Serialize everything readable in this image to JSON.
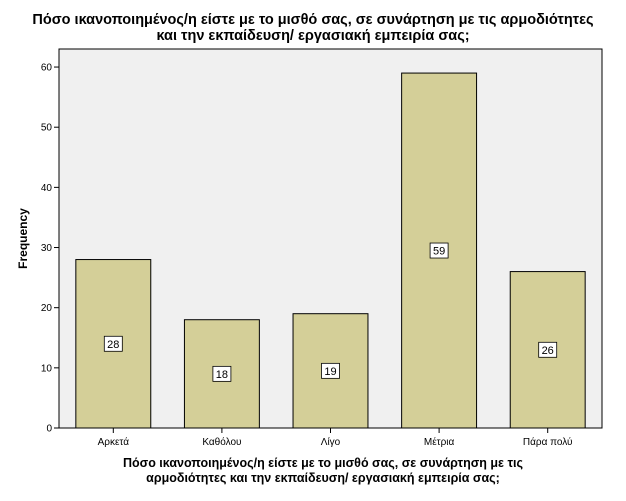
{
  "chart_data": {
    "type": "bar",
    "title_lines": [
      "Πόσο ικανοποιημένος/η είστε με το μισθό σας, σε συνάρτηση με τις αρμοδιότητες",
      "και την εκπαίδευση/ εργασιακή εμπειρία σας;"
    ],
    "xlabel_lines": [
      "Πόσο ικανοποιημένος/η είστε με το μισθό σας, σε συνάρτηση με τις",
      "αρμοδιότητες και την εκπαίδευση/ εργασιακή εμπειρία σας;"
    ],
    "ylabel": "Frequency",
    "categories": [
      "Αρκετά",
      "Καθόλου",
      "Λίγο",
      "Μέτρια",
      "Πάρα πολύ"
    ],
    "values": [
      28,
      18,
      19,
      59,
      26
    ],
    "ylim": [
      0,
      63
    ],
    "yticks": [
      0,
      10,
      20,
      30,
      40,
      50,
      60
    ],
    "grid": false,
    "colors": {
      "bar": "#d4cf98",
      "plot_bg": "#f0f0f0",
      "frame": "#000000"
    }
  }
}
